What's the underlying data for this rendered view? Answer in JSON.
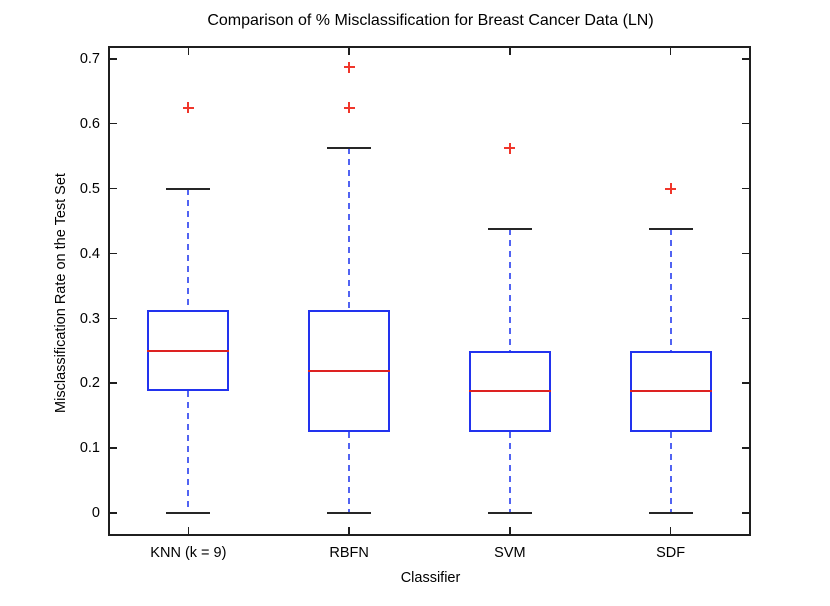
{
  "figure": {
    "background": "#ffffff"
  },
  "colors": {
    "box_edge": "#2233ee",
    "whisker": "#5163f2",
    "median": "#dd2222",
    "outlier": "#f0362b",
    "cap": "#262626",
    "frame": "#1f1f1f",
    "text": "#000000"
  },
  "chart_data": {
    "type": "boxplot",
    "title": "Comparison of % Misclassification for Breast Cancer Data (LN)",
    "xlabel": "Classifier",
    "ylabel": "Misclassification Rate on the Test Set",
    "categories": [
      "KNN (k = 9)",
      "RBFN",
      "SVM",
      "SDF"
    ],
    "series": [
      {
        "name": "KNN (k = 9)",
        "whisker_low": 0,
        "q1": 0.1875,
        "median": 0.25,
        "q3": 0.3125,
        "whisker_high": 0.5,
        "outliers": [
          0.625
        ]
      },
      {
        "name": "RBFN",
        "whisker_low": 0,
        "q1": 0.125,
        "median": 0.21875,
        "q3": 0.3125,
        "whisker_high": 0.5625,
        "outliers": [
          0.625,
          0.6875
        ]
      },
      {
        "name": "SVM",
        "whisker_low": 0,
        "q1": 0.125,
        "median": 0.1875,
        "q3": 0.25,
        "whisker_high": 0.4375,
        "outliers": [
          0.5625
        ]
      },
      {
        "name": "SDF",
        "whisker_low": 0,
        "q1": 0.125,
        "median": 0.1875,
        "q3": 0.25,
        "whisker_high": 0.4375,
        "outliers": [
          0.5
        ]
      }
    ],
    "yticks": [
      0,
      0.1,
      0.2,
      0.3,
      0.4,
      0.5,
      0.6,
      0.7
    ],
    "ytick_labels": [
      "0",
      "0.1",
      "0.2",
      "0.3",
      "0.4",
      "0.5",
      "0.6",
      "0.7"
    ],
    "ylim": [
      -0.0353,
      0.7201
    ],
    "grid": false,
    "legend": null
  }
}
